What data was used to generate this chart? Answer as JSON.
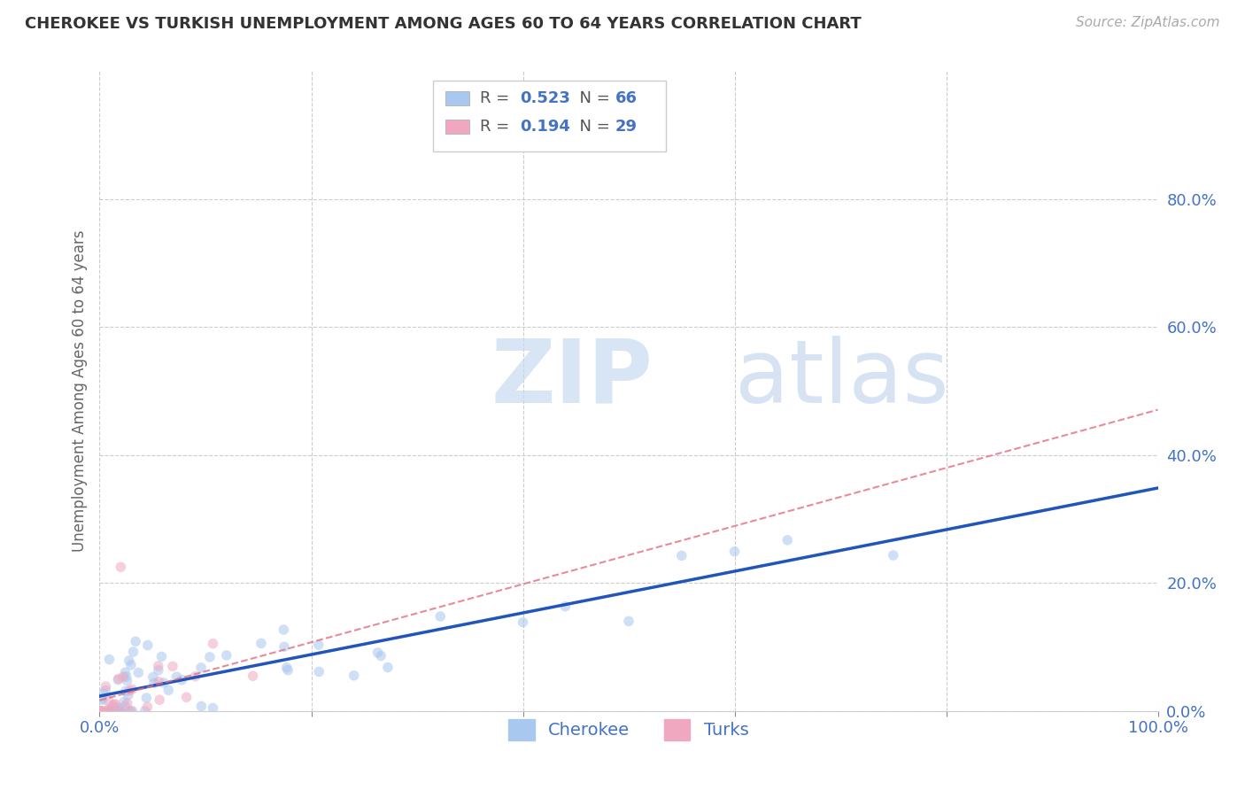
{
  "title": "CHEROKEE VS TURKISH UNEMPLOYMENT AMONG AGES 60 TO 64 YEARS CORRELATION CHART",
  "source": "Source: ZipAtlas.com",
  "ylabel": "Unemployment Among Ages 60 to 64 years",
  "xlim": [
    0,
    1.0
  ],
  "ylim": [
    0,
    1.0
  ],
  "xticks": [
    0.0,
    0.2,
    0.4,
    0.6,
    0.8,
    1.0
  ],
  "xtick_labels_ends": [
    "0.0%",
    "100.0%"
  ],
  "yticks": [
    0.0,
    0.2,
    0.4,
    0.6,
    0.8
  ],
  "ytick_labels": [
    "0.0%",
    "20.0%",
    "40.0%",
    "60.0%",
    "80.0%"
  ],
  "cherokee_color": "#a8c8f0",
  "turks_color": "#f0a8c0",
  "cherokee_line_color": "#2255bb",
  "turks_line_color": "#e07080",
  "watermark_zip": "ZIP",
  "watermark_atlas": "atlas",
  "background_color": "#ffffff",
  "grid_color": "#cccccc",
  "title_color": "#333333",
  "axis_label_color": "#666666",
  "tick_color": "#4472c4",
  "dot_size": 70,
  "dot_alpha": 0.55,
  "cherokee_R": 0.523,
  "cherokee_N": 66,
  "turks_R": 0.194,
  "turks_N": 29
}
